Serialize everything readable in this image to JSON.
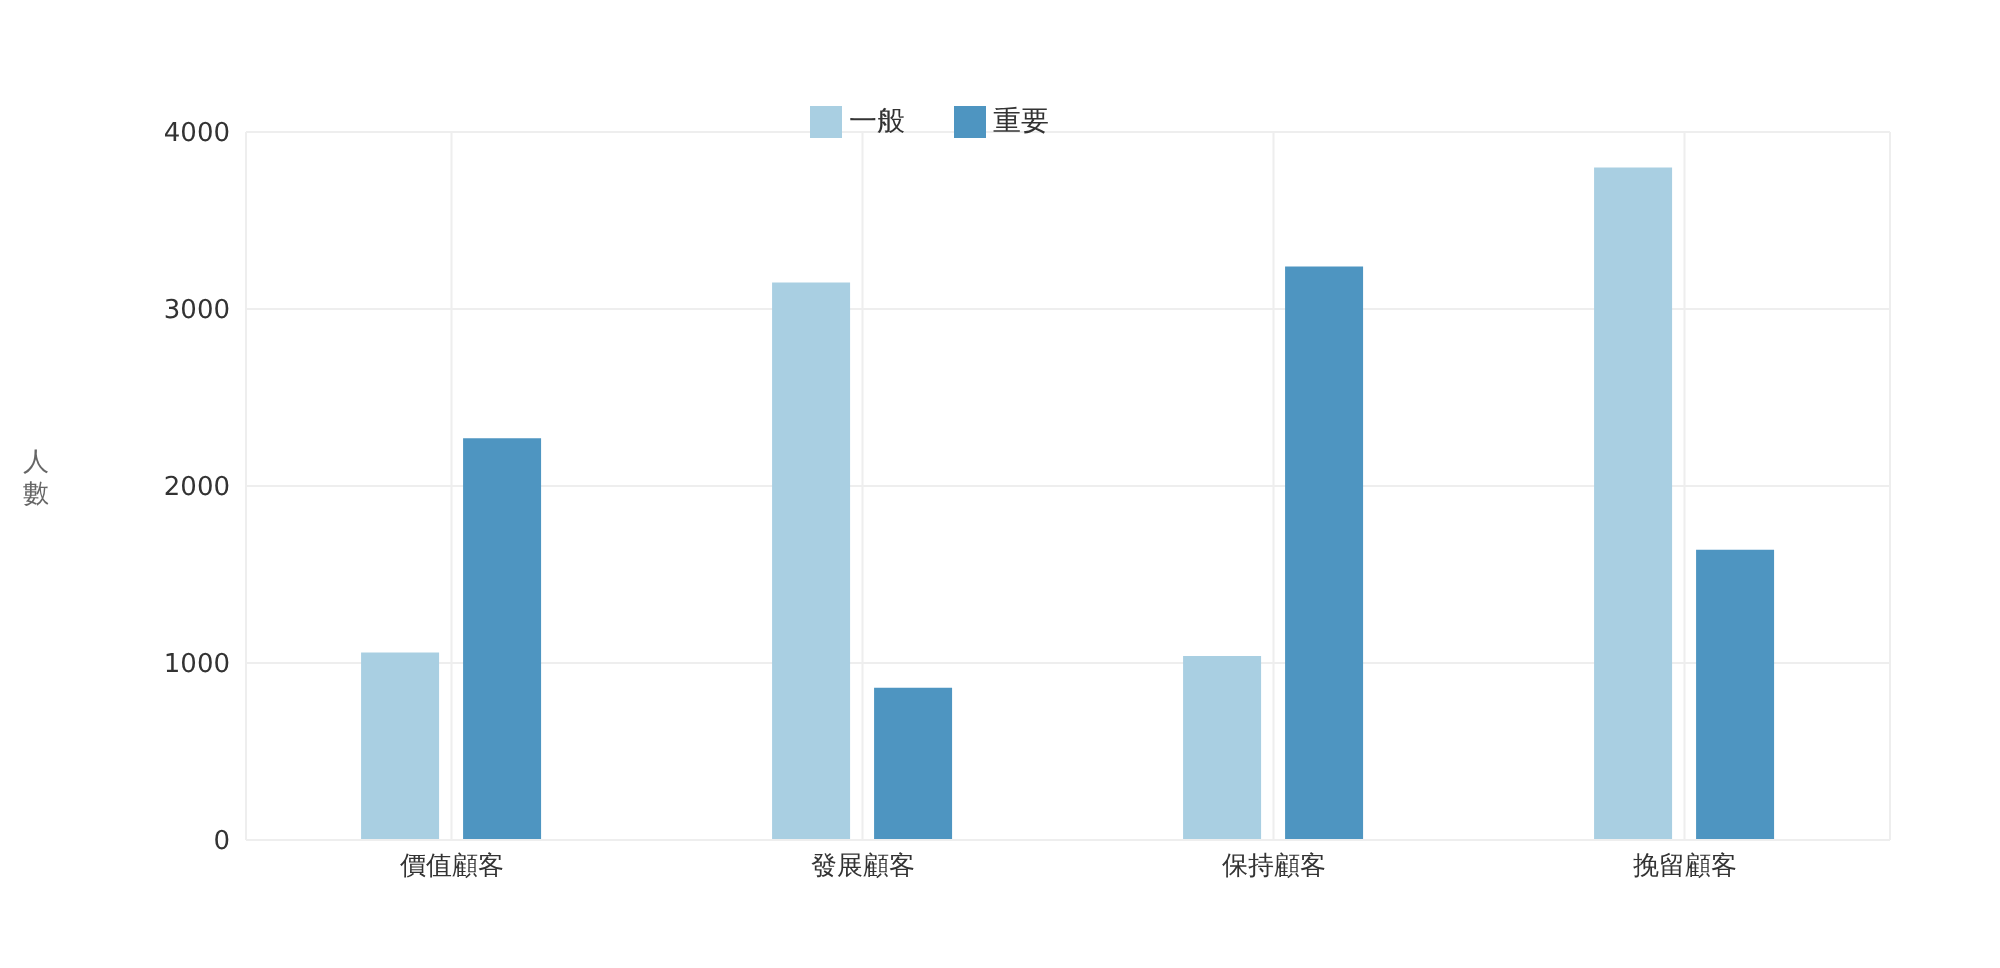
{
  "chart_data": {
    "type": "bar",
    "ylabel": "人數",
    "categories": [
      "價值顧客",
      "發展顧客",
      "保持顧客",
      "挽留顧客"
    ],
    "series": [
      {
        "name": "一般",
        "color": "#a9cfe2",
        "values": [
          1060,
          3150,
          1040,
          3800
        ]
      },
      {
        "name": "重要",
        "color": "#4e95c1",
        "values": [
          2270,
          860,
          3240,
          1640
        ]
      }
    ],
    "ylim": [
      0,
      4000
    ],
    "yticks": [
      0,
      1000,
      2000,
      3000,
      4000
    ],
    "grid": true,
    "legend": "top"
  }
}
